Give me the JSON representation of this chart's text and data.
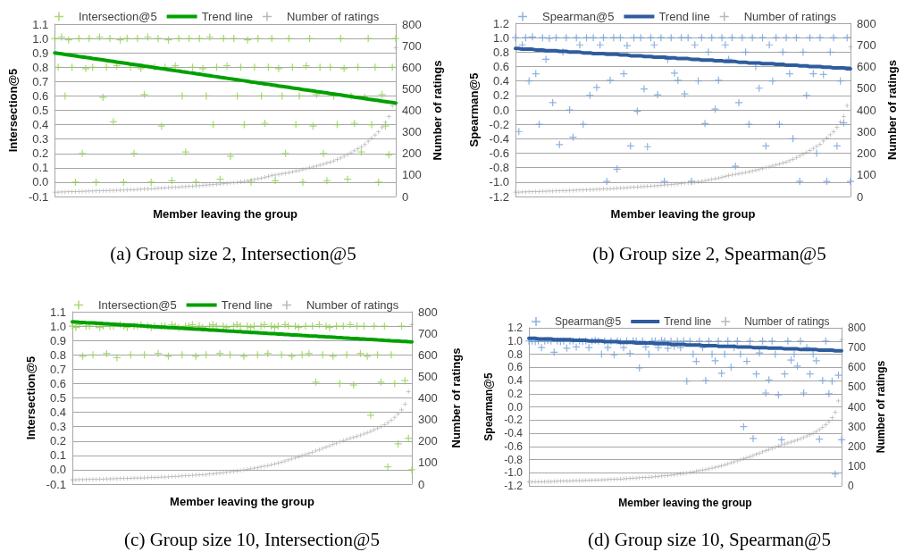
{
  "chart_data": [
    {
      "type": "scatter",
      "title": "(a) Group size 2, Intersection@5",
      "xlabel": "Member leaving the group",
      "ylabel": "Intersection@5",
      "y2label": "Number of ratings",
      "legend": "top",
      "grid": "y",
      "categories": [
        null,
        null,
        null,
        null,
        null,
        null,
        null,
        null,
        null,
        null,
        null,
        null,
        null,
        null,
        null,
        null,
        null,
        null,
        null,
        null,
        null,
        null,
        null,
        null,
        null,
        null,
        null,
        null,
        null,
        null,
        null,
        null,
        null,
        null,
        null,
        null,
        null,
        null,
        null,
        null,
        null,
        null,
        null,
        null,
        null,
        null,
        null,
        null,
        null,
        null,
        null,
        null,
        null,
        null,
        null,
        null,
        null,
        null,
        null,
        null,
        null,
        null,
        null,
        null,
        null,
        null,
        null,
        null,
        null,
        null,
        null,
        null,
        null,
        null,
        null,
        null,
        null,
        null,
        null,
        null,
        null,
        null,
        null,
        null,
        null,
        null,
        null,
        null,
        null,
        null,
        null,
        null,
        null,
        null,
        null,
        null,
        null,
        null,
        null,
        null
      ],
      "ylim": [
        -0.1,
        1.1
      ],
      "yticks": [
        -0.1,
        {
          "value": 0,
          "label": "0.0"
        },
        0.1,
        0.2,
        0.3,
        0.4,
        0.5,
        0.6,
        0.7,
        0.8,
        0.9,
        {
          "value": 1,
          "label": "1.0"
        },
        1.1
      ],
      "y2lim": [
        0,
        800
      ],
      "y2ticks": [
        0,
        100,
        200,
        300,
        400,
        500,
        600,
        700,
        800
      ],
      "series": [
        {
          "type": "scatter",
          "name": "Intersection@5",
          "color": "#92d050",
          "marker": "cross",
          "values": [
            1,
            0.8,
            1.01,
            0.6,
            0.99,
            0.8,
            0,
            1,
            0.2,
            0.79,
            1,
            0.8,
            0,
            1.01,
            0.59,
            0.8,
            1,
            0.42,
            0.81,
            0.99,
            0,
            1,
            0.8,
            0.2,
            1,
            0.79,
            0.61,
            1.01,
            0,
            0.8,
            1,
            0.39,
            0.8,
            0.99,
            0.01,
            0.81,
            1,
            0.6,
            0.21,
            1,
            0.8,
            0,
            1,
            0.79,
            0.6,
            1.01,
            0.4,
            0.8,
            0.02,
            1,
            0.81,
            0.18,
            1,
            0.6,
            0.8,
            0.4,
            0.99,
            0,
            0.8,
            1,
            0.6,
            0.41,
            0.8,
            1,
            0.01,
            0.79,
            0.6,
            0.2,
            1,
            0.8,
            0.4,
            0.6,
            0,
            0.81,
            1,
            0.39,
            0.61,
            0.8,
            0.2,
            0.01,
            0.8,
            0.6,
            0.4,
            1,
            0.79,
            0.02,
            0.6,
            0.41,
            0.8,
            0.21,
            0.59,
            1,
            0.4,
            0.8,
            0,
            0.61,
            0.39,
            0.19,
            0.8,
            1
          ]
        },
        {
          "type": "line",
          "name": "Trend line",
          "color": "#00a000",
          "marker": "none",
          "line_style": "solid",
          "values": [
            0.9,
            0.896,
            0.893,
            0.889,
            0.886,
            0.882,
            0.879,
            0.875,
            0.872,
            0.868,
            0.865,
            0.861,
            0.858,
            0.854,
            0.851,
            0.847,
            0.843,
            0.84,
            0.836,
            0.833,
            0.829,
            0.826,
            0.822,
            0.819,
            0.815,
            0.812,
            0.808,
            0.805,
            0.801,
            0.797,
            0.794,
            0.79,
            0.787,
            0.783,
            0.78,
            0.776,
            0.773,
            0.769,
            0.766,
            0.762,
            0.759,
            0.755,
            0.752,
            0.748,
            0.744,
            0.741,
            0.737,
            0.734,
            0.73,
            0.727,
            0.723,
            0.72,
            0.716,
            0.713,
            0.709,
            0.706,
            0.702,
            0.698,
            0.695,
            0.691,
            0.688,
            0.684,
            0.681,
            0.677,
            0.674,
            0.67,
            0.667,
            0.663,
            0.66,
            0.656,
            0.653,
            0.649,
            0.645,
            0.642,
            0.638,
            0.635,
            0.631,
            0.628,
            0.624,
            0.621,
            0.617,
            0.614,
            0.61,
            0.607,
            0.603,
            0.599,
            0.596,
            0.592,
            0.589,
            0.585,
            0.582,
            0.578,
            0.575,
            0.571,
            0.568,
            0.564,
            0.561,
            0.557,
            0.554,
            0.55
          ]
        },
        {
          "type": "scatter",
          "name": "Number of ratings",
          "color": "#a6a6a6",
          "marker": "cross",
          "axis": "y2",
          "values": [
            20,
            20,
            21,
            21,
            22,
            22,
            23,
            23,
            24,
            24,
            25,
            25,
            26,
            26,
            27,
            27,
            28,
            28,
            29,
            30,
            30,
            31,
            32,
            32,
            33,
            34,
            35,
            35,
            36,
            37,
            38,
            39,
            40,
            41,
            42,
            43,
            44,
            45,
            46,
            47,
            48,
            49,
            50,
            52,
            53,
            54,
            55,
            57,
            58,
            60,
            62,
            63,
            65,
            66,
            68,
            70,
            73,
            76,
            79,
            82,
            85,
            89,
            93,
            97,
            100,
            103,
            105,
            108,
            111,
            114,
            118,
            121,
            125,
            129,
            133,
            137,
            141,
            146,
            150,
            155,
            159,
            165,
            172,
            179,
            187,
            195,
            203,
            212,
            222,
            231,
            241,
            256,
            270,
            285,
            300,
            320,
            345,
            370,
            420,
            690
          ]
        }
      ]
    },
    {
      "type": "scatter",
      "title": "(b) Group size 2, Spearman@5",
      "xlabel": "Member leaving the group",
      "ylabel": "Spearman@5",
      "y2label": "Number of ratings",
      "legend": "top",
      "grid": "y",
      "categories": [
        null,
        null,
        null,
        null,
        null,
        null,
        null,
        null,
        null,
        null,
        null,
        null,
        null,
        null,
        null,
        null,
        null,
        null,
        null,
        null,
        null,
        null,
        null,
        null,
        null,
        null,
        null,
        null,
        null,
        null,
        null,
        null,
        null,
        null,
        null,
        null,
        null,
        null,
        null,
        null,
        null,
        null,
        null,
        null,
        null,
        null,
        null,
        null,
        null,
        null,
        null,
        null,
        null,
        null,
        null,
        null,
        null,
        null,
        null,
        null,
        null,
        null,
        null,
        null,
        null,
        null,
        null,
        null,
        null,
        null,
        null,
        null,
        null,
        null,
        null,
        null,
        null,
        null,
        null,
        null,
        null,
        null,
        null,
        null,
        null,
        null,
        null,
        null,
        null,
        null,
        null,
        null,
        null,
        null,
        null,
        null,
        null,
        null,
        null,
        null
      ],
      "ylim": [
        -1.2,
        1.2
      ],
      "yticks": [
        -1.2,
        {
          "value": -1,
          "label": "-1.0"
        },
        -0.8,
        -0.6,
        -0.4,
        -0.2,
        {
          "value": 0,
          "label": "0.0"
        },
        0.2,
        0.4,
        0.6,
        0.8,
        {
          "value": 1,
          "label": "1.0"
        },
        1.2
      ],
      "y2lim": [
        0,
        800
      ],
      "y2ticks": [
        0,
        100,
        200,
        300,
        400,
        500,
        600,
        700,
        800
      ],
      "series": [
        {
          "type": "scatter",
          "name": "Spearman@5",
          "color": "#6f9fd8",
          "marker": "cross",
          "values": [
            1,
            -0.3,
            0.9,
            1,
            0.4,
            1.01,
            0.5,
            -0.2,
            1,
            0.7,
            0.99,
            0.1,
            1,
            -0.48,
            0.8,
            1,
            0,
            -0.38,
            1,
            0.9,
            -0.2,
            1,
            0.2,
            1,
            0.31,
            0.9,
            1,
            -0.99,
            0.41,
            1,
            -0.82,
            1,
            0.5,
            0.89,
            -0.5,
            1,
            -0.02,
            1,
            0.29,
            -0.51,
            1,
            0.9,
            0.21,
            1,
            -0.99,
            0.7,
            1,
            0.51,
            0.41,
            1,
            0.22,
            1,
            -0.99,
            0.9,
            0.4,
            1,
            -0.19,
            0.8,
            1,
            0.01,
            0.41,
            1,
            0.9,
            0.7,
            1,
            -0.78,
            0.1,
            1,
            0.8,
            -0.2,
            1,
            0.6,
            0.3,
            1,
            -0.5,
            0.9,
            0.4,
            1,
            -0.2,
            0.8,
            1,
            0.5,
            -0.4,
            1,
            -0.99,
            0.8,
            0.2,
            1,
            0.5,
            -0.6,
            1,
            0.49,
            -0.99,
            0.8,
            1,
            -0.5,
            0.4,
            -0.18,
            1,
            -0.99
          ]
        },
        {
          "type": "line",
          "name": "Trend line",
          "color": "#2e5c9e",
          "marker": "none",
          "line_style": "solid",
          "values": [
            0.85,
            0.85,
            0.84,
            0.84,
            0.84,
            0.84,
            0.83,
            0.83,
            0.83,
            0.82,
            0.82,
            0.82,
            0.82,
            0.81,
            0.81,
            0.81,
            0.8,
            0.8,
            0.8,
            0.8,
            0.79,
            0.79,
            0.79,
            0.78,
            0.78,
            0.78,
            0.78,
            0.77,
            0.77,
            0.77,
            0.77,
            0.76,
            0.76,
            0.76,
            0.75,
            0.75,
            0.75,
            0.75,
            0.74,
            0.74,
            0.74,
            0.73,
            0.73,
            0.73,
            0.73,
            0.72,
            0.72,
            0.72,
            0.71,
            0.71,
            0.71,
            0.71,
            0.7,
            0.7,
            0.7,
            0.69,
            0.69,
            0.69,
            0.69,
            0.68,
            0.68,
            0.68,
            0.67,
            0.67,
            0.67,
            0.67,
            0.66,
            0.66,
            0.66,
            0.65,
            0.65,
            0.65,
            0.65,
            0.64,
            0.64,
            0.64,
            0.64,
            0.63,
            0.63,
            0.63,
            0.62,
            0.62,
            0.62,
            0.62,
            0.61,
            0.61,
            0.61,
            0.6,
            0.6,
            0.6,
            0.6,
            0.59,
            0.59,
            0.59,
            0.58,
            0.58,
            0.58,
            0.58,
            0.57,
            0.57
          ]
        },
        {
          "type": "scatter",
          "name": "Number of ratings",
          "color": "#a6a6a6",
          "marker": "cross",
          "axis": "y2",
          "values": [
            20,
            20,
            21,
            21,
            22,
            22,
            23,
            23,
            24,
            24,
            25,
            25,
            26,
            26,
            27,
            27,
            28,
            28,
            29,
            30,
            30,
            31,
            32,
            32,
            33,
            34,
            35,
            35,
            36,
            37,
            38,
            39,
            40,
            41,
            42,
            43,
            44,
            45,
            46,
            47,
            48,
            49,
            50,
            52,
            53,
            54,
            55,
            57,
            58,
            60,
            62,
            63,
            65,
            66,
            68,
            70,
            73,
            76,
            79,
            82,
            85,
            89,
            93,
            97,
            100,
            103,
            105,
            108,
            111,
            114,
            118,
            121,
            125,
            129,
            133,
            137,
            141,
            146,
            150,
            155,
            159,
            165,
            172,
            179,
            187,
            195,
            203,
            212,
            222,
            231,
            241,
            256,
            270,
            285,
            300,
            320,
            345,
            370,
            420,
            690
          ]
        }
      ]
    },
    {
      "type": "scatter",
      "title": "(c) Group size 10, Intersection@5",
      "xlabel": "Member leaving the group",
      "ylabel": "Intersection@5",
      "y2label": "Number of ratings",
      "legend": "top",
      "grid": "y",
      "categories": [
        null,
        null,
        null,
        null,
        null,
        null,
        null,
        null,
        null,
        null,
        null,
        null,
        null,
        null,
        null,
        null,
        null,
        null,
        null,
        null,
        null,
        null,
        null,
        null,
        null,
        null,
        null,
        null,
        null,
        null,
        null,
        null,
        null,
        null,
        null,
        null,
        null,
        null,
        null,
        null,
        null,
        null,
        null,
        null,
        null,
        null,
        null,
        null,
        null,
        null,
        null,
        null,
        null,
        null,
        null,
        null,
        null,
        null,
        null,
        null,
        null,
        null,
        null,
        null,
        null,
        null,
        null,
        null,
        null,
        null,
        null,
        null,
        null,
        null,
        null,
        null,
        null,
        null,
        null,
        null,
        null,
        null,
        null,
        null,
        null,
        null,
        null,
        null,
        null,
        null,
        null,
        null,
        null,
        null,
        null,
        null,
        null,
        null,
        null,
        null
      ],
      "ylim": [
        -0.1,
        1.1
      ],
      "yticks": [
        -0.1,
        {
          "value": 0,
          "label": "0.0"
        },
        0.1,
        0.2,
        0.3,
        0.4,
        0.5,
        0.6,
        0.7,
        0.8,
        0.9,
        {
          "value": 1,
          "label": "1.0"
        },
        1.1
      ],
      "y2lim": [
        0,
        800
      ],
      "y2ticks": [
        0,
        100,
        200,
        300,
        400,
        500,
        600,
        700,
        800
      ],
      "series": [
        {
          "type": "scatter",
          "name": "Intersection@5",
          "color": "#92d050",
          "marker": "cross",
          "values": [
            1,
            0.99,
            1.01,
            0.79,
            1,
            1,
            0.8,
            1.01,
            0.99,
            1,
            0.81,
            1,
            1,
            0.78,
            1.01,
            1,
            0.99,
            0.8,
            1,
            1,
            1.01,
            0.8,
            1,
            0.99,
            1,
            0.81,
            1,
            1,
            0.79,
            1.01,
            1,
            0.99,
            0.8,
            1,
            1,
            1.01,
            0.79,
            1,
            0.99,
            0.8,
            1,
            1.01,
            1,
            0.81,
            1,
            0.99,
            0.8,
            1,
            1.01,
            1,
            0.79,
            1,
            0.99,
            1,
            0.8,
            1,
            1.01,
            0.81,
            1,
            0.99,
            1,
            0.8,
            1.01,
            1,
            0.79,
            1,
            0.99,
            0.8,
            1,
            0.81,
            1,
            0.61,
            1.01,
            0.8,
            1,
            0.99,
            0.79,
            1,
            0.6,
            1,
            0.8,
            1.01,
            0.59,
            1,
            0.81,
            1,
            0.79,
            0.38,
            1,
            0.8,
            0.61,
            1,
            0.02,
            0.8,
            0.6,
            0.18,
            1,
            0.62,
            0.22,
            0
          ]
        },
        {
          "type": "line",
          "name": "Trend line",
          "color": "#00a000",
          "marker": "none",
          "line_style": "solid",
          "values": [
            1.03,
            1.029,
            1.027,
            1.026,
            1.024,
            1.023,
            1.022,
            1.02,
            1.019,
            1.017,
            1.016,
            1.014,
            1.013,
            1.012,
            1.01,
            1.009,
            1.007,
            1.006,
            1.005,
            1.003,
            1.002,
            1,
            0.999,
            0.997,
            0.996,
            0.995,
            0.993,
            0.992,
            0.99,
            0.989,
            0.988,
            0.986,
            0.985,
            0.983,
            0.982,
            0.981,
            0.979,
            0.978,
            0.976,
            0.975,
            0.973,
            0.972,
            0.971,
            0.969,
            0.968,
            0.966,
            0.965,
            0.964,
            0.962,
            0.961,
            0.959,
            0.958,
            0.956,
            0.955,
            0.954,
            0.952,
            0.951,
            0.949,
            0.948,
            0.947,
            0.945,
            0.944,
            0.942,
            0.941,
            0.939,
            0.938,
            0.937,
            0.935,
            0.934,
            0.932,
            0.931,
            0.93,
            0.928,
            0.927,
            0.925,
            0.924,
            0.923,
            0.921,
            0.92,
            0.918,
            0.917,
            0.915,
            0.914,
            0.913,
            0.911,
            0.91,
            0.908,
            0.907,
            0.906,
            0.904,
            0.903,
            0.901,
            0.9,
            0.898,
            0.897,
            0.896,
            0.894,
            0.893,
            0.891,
            0.89
          ]
        },
        {
          "type": "scatter",
          "name": "Number of ratings",
          "color": "#a6a6a6",
          "marker": "cross",
          "axis": "y2",
          "values": [
            20,
            20,
            21,
            21,
            21,
            22,
            22,
            22,
            23,
            23,
            24,
            24,
            25,
            25,
            26,
            26,
            27,
            27,
            28,
            28,
            29,
            29,
            30,
            31,
            31,
            32,
            33,
            33,
            34,
            35,
            36,
            37,
            38,
            39,
            40,
            41,
            42,
            43,
            44,
            45,
            47,
            48,
            50,
            51,
            53,
            55,
            57,
            59,
            61,
            63,
            66,
            68,
            71,
            74,
            77,
            80,
            83,
            86,
            90,
            94,
            98,
            102,
            107,
            112,
            117,
            122,
            127,
            132,
            137,
            142,
            148,
            154,
            160,
            166,
            172,
            178,
            184,
            190,
            196,
            202,
            207,
            212,
            217,
            222,
            227,
            233,
            239,
            245,
            252,
            259,
            266,
            275,
            285,
            297,
            310,
            325,
            345,
            372,
            430,
            740
          ]
        }
      ]
    },
    {
      "type": "scatter",
      "title": "(d) Group size 10, Spearman@5",
      "xlabel": "Member leaving the group",
      "ylabel": "Spearman@5",
      "y2label": "Number of ratings",
      "legend": "top",
      "grid": "y",
      "categories": [
        null,
        null,
        null,
        null,
        null,
        null,
        null,
        null,
        null,
        null,
        null,
        null,
        null,
        null,
        null,
        null,
        null,
        null,
        null,
        null,
        null,
        null,
        null,
        null,
        null,
        null,
        null,
        null,
        null,
        null,
        null,
        null,
        null,
        null,
        null,
        null,
        null,
        null,
        null,
        null,
        null,
        null,
        null,
        null,
        null,
        null,
        null,
        null,
        null,
        null,
        null,
        null,
        null,
        null,
        null,
        null,
        null,
        null,
        null,
        null,
        null,
        null,
        null,
        null,
        null,
        null,
        null,
        null,
        null,
        null,
        null,
        null,
        null,
        null,
        null,
        null,
        null,
        null,
        null,
        null,
        null,
        null,
        null,
        null,
        null,
        null,
        null,
        null,
        null,
        null,
        null,
        null,
        null,
        null,
        null,
        null,
        null,
        null,
        null,
        null
      ],
      "ylim": [
        -1.2,
        1.2
      ],
      "yticks": [
        -1.2,
        {
          "value": -1,
          "label": "-1.0"
        },
        -0.8,
        -0.6,
        -0.4,
        -0.2,
        {
          "value": 0,
          "label": "0.0"
        },
        0.2,
        0.4,
        0.6,
        0.8,
        {
          "value": 1,
          "label": "1.0"
        },
        1.2
      ],
      "y2lim": [
        0,
        800
      ],
      "y2ticks": [
        0,
        100,
        200,
        300,
        400,
        500,
        600,
        700,
        800
      ],
      "series": [
        {
          "type": "scatter",
          "name": "Spearman@5",
          "color": "#6f9fd8",
          "marker": "cross",
          "values": [
            1,
            1,
            0.99,
            1,
            0.9,
            1,
            1.01,
            1,
            0.83,
            1,
            0.99,
            1,
            0.89,
            1,
            1,
            0.91,
            1,
            0.99,
            1,
            0.9,
            1,
            1.01,
            1,
            0.8,
            1,
            0.9,
            1,
            0.79,
            1,
            0.99,
            0.9,
            1,
            0.81,
            1,
            1,
            0.59,
            1,
            0.91,
            0.8,
            1,
            1,
            0.9,
            1.01,
            1,
            0.89,
            1,
            0.92,
            1,
            0.9,
            1,
            0.39,
            1,
            0.8,
            0.69,
            1,
            0.9,
            0.4,
            1,
            0.8,
            0.7,
            1,
            0.51,
            0.8,
            1,
            0.6,
            0.9,
            1,
            0.8,
            -0.3,
            0.69,
            1,
            -0.48,
            0.5,
            0.82,
            1,
            0.21,
            0.41,
            1,
            0.8,
            0.18,
            -0.5,
            0.5,
            1,
            0.71,
            0.8,
            0.62,
            1,
            0.21,
            0.9,
            0.5,
            0.8,
            0.7,
            -0.49,
            0.4,
            1,
            0.2,
            0.39,
            -1.02,
            0.48,
            -0.5
          ]
        },
        {
          "type": "line",
          "name": "Trend line",
          "color": "#2e5c9e",
          "marker": "none",
          "line_style": "solid",
          "values": [
            1.04,
            1.04,
            1.04,
            1.03,
            1.03,
            1.03,
            1.03,
            1.03,
            1.02,
            1.02,
            1.02,
            1.02,
            1.02,
            1.02,
            1.01,
            1.01,
            1.01,
            1.01,
            1.01,
            1,
            1,
            1,
            1,
            1,
            0.99,
            0.99,
            0.99,
            0.99,
            0.99,
            0.98,
            0.98,
            0.98,
            0.98,
            0.98,
            0.97,
            0.97,
            0.97,
            0.97,
            0.97,
            0.97,
            0.96,
            0.96,
            0.96,
            0.96,
            0.96,
            0.95,
            0.95,
            0.95,
            0.95,
            0.95,
            0.94,
            0.94,
            0.94,
            0.94,
            0.94,
            0.93,
            0.93,
            0.93,
            0.93,
            0.93,
            0.92,
            0.92,
            0.92,
            0.92,
            0.92,
            0.92,
            0.91,
            0.91,
            0.91,
            0.91,
            0.91,
            0.9,
            0.9,
            0.9,
            0.9,
            0.9,
            0.89,
            0.89,
            0.89,
            0.89,
            0.89,
            0.88,
            0.88,
            0.88,
            0.88,
            0.88,
            0.87,
            0.87,
            0.87,
            0.87,
            0.87,
            0.87,
            0.86,
            0.86,
            0.86,
            0.86,
            0.86,
            0.85,
            0.85,
            0.85
          ]
        },
        {
          "type": "scatter",
          "name": "Number of ratings",
          "color": "#a6a6a6",
          "marker": "cross",
          "axis": "y2",
          "values": [
            20,
            20,
            21,
            21,
            21,
            22,
            22,
            22,
            23,
            23,
            24,
            24,
            25,
            25,
            26,
            26,
            27,
            27,
            28,
            28,
            29,
            29,
            30,
            31,
            31,
            32,
            33,
            33,
            34,
            35,
            36,
            37,
            38,
            39,
            40,
            41,
            42,
            43,
            44,
            45,
            47,
            48,
            50,
            51,
            53,
            55,
            57,
            59,
            61,
            63,
            66,
            68,
            71,
            74,
            77,
            80,
            83,
            86,
            90,
            94,
            98,
            102,
            107,
            112,
            117,
            122,
            127,
            132,
            137,
            142,
            148,
            154,
            160,
            166,
            172,
            178,
            184,
            190,
            196,
            202,
            207,
            212,
            217,
            222,
            227,
            233,
            239,
            245,
            252,
            259,
            266,
            275,
            285,
            297,
            310,
            325,
            345,
            372,
            430,
            740
          ]
        }
      ]
    }
  ]
}
